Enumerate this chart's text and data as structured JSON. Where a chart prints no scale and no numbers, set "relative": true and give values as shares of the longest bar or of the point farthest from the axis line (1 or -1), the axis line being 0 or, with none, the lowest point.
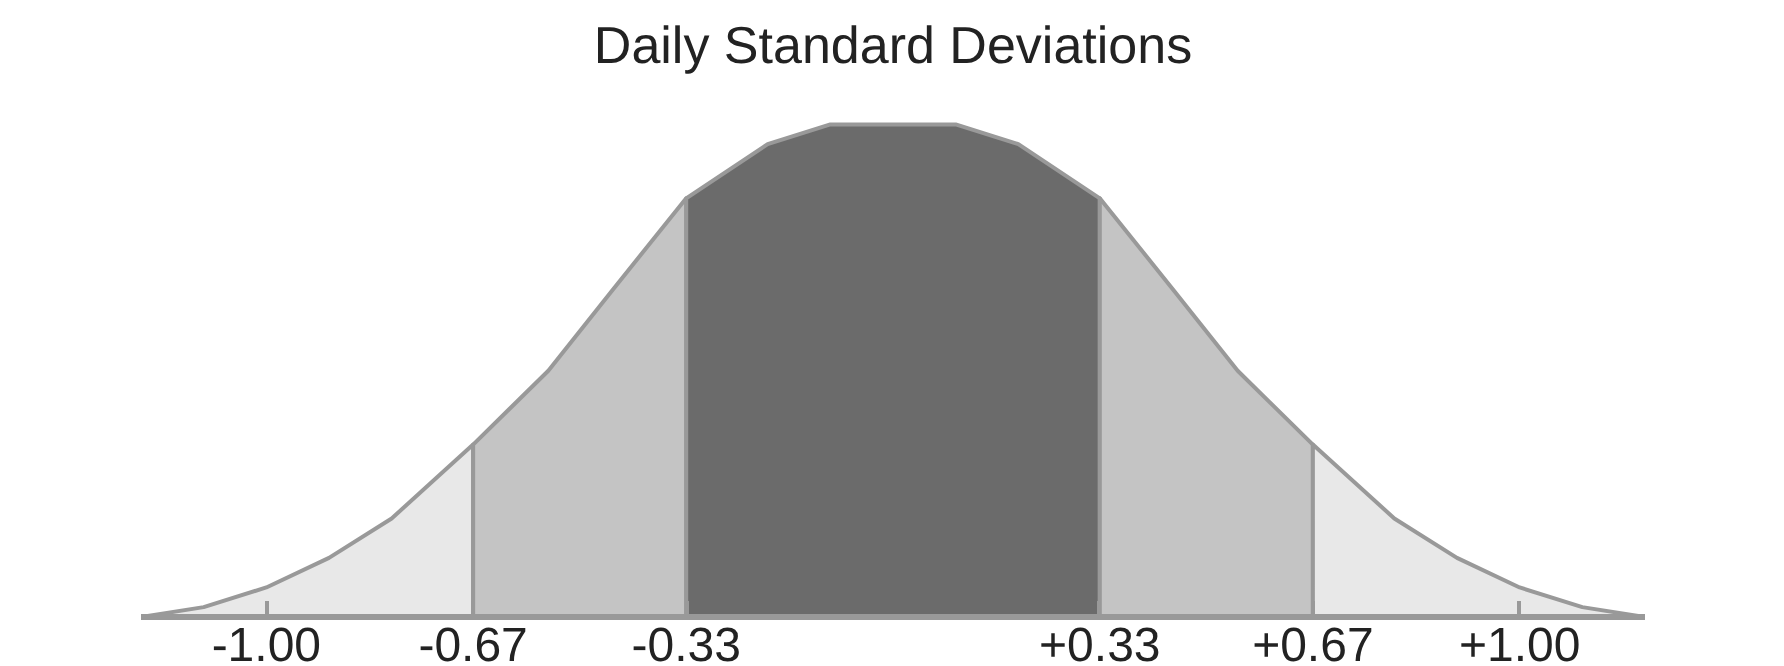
{
  "chart_data": {
    "type": "area",
    "title": "Daily Standard Deviations",
    "relative": true,
    "tick_labels": "x",
    "grid": false,
    "xlim": [
      -1.2,
      1.2
    ],
    "xticks": [
      {
        "value": -1,
        "label": "-1.00"
      },
      {
        "value": -0.67,
        "label": "-0.67"
      },
      {
        "value": -0.33,
        "label": "-0.33"
      },
      {
        "value": 0.33,
        "label": "+0.33"
      },
      {
        "value": 0.67,
        "label": "+0.67"
      },
      {
        "value": 1,
        "label": "+1.00"
      }
    ],
    "series": [
      {
        "color": "#e8e8e8",
        "x": [
          -1.2,
          -1.1,
          -1.0,
          -0.9,
          -0.8,
          -0.67
        ],
        "values": [
          0,
          0.02,
          0.06,
          0.12,
          0.2,
          0.35
        ]
      },
      {
        "color": "#c4c4c4",
        "x": [
          -0.67,
          -0.55,
          -0.45,
          -0.33
        ],
        "values": [
          0.35,
          0.5,
          0.66,
          0.85
        ]
      },
      {
        "color": "#6b6b6b",
        "x": [
          -0.33,
          -0.2,
          -0.1,
          0,
          0.1,
          0.2,
          0.33
        ],
        "values": [
          0.85,
          0.96,
          1,
          1,
          1,
          0.96,
          0.85
        ]
      },
      {
        "color": "#c4c4c4",
        "x": [
          0.33,
          0.45,
          0.55,
          0.67
        ],
        "values": [
          0.85,
          0.66,
          0.5,
          0.35
        ]
      },
      {
        "color": "#e8e8e8",
        "x": [
          0.67,
          0.8,
          0.9,
          1.0,
          1.1,
          1.2
        ],
        "values": [
          0.35,
          0.2,
          0.12,
          0.06,
          0.02,
          0
        ]
      }
    ]
  }
}
